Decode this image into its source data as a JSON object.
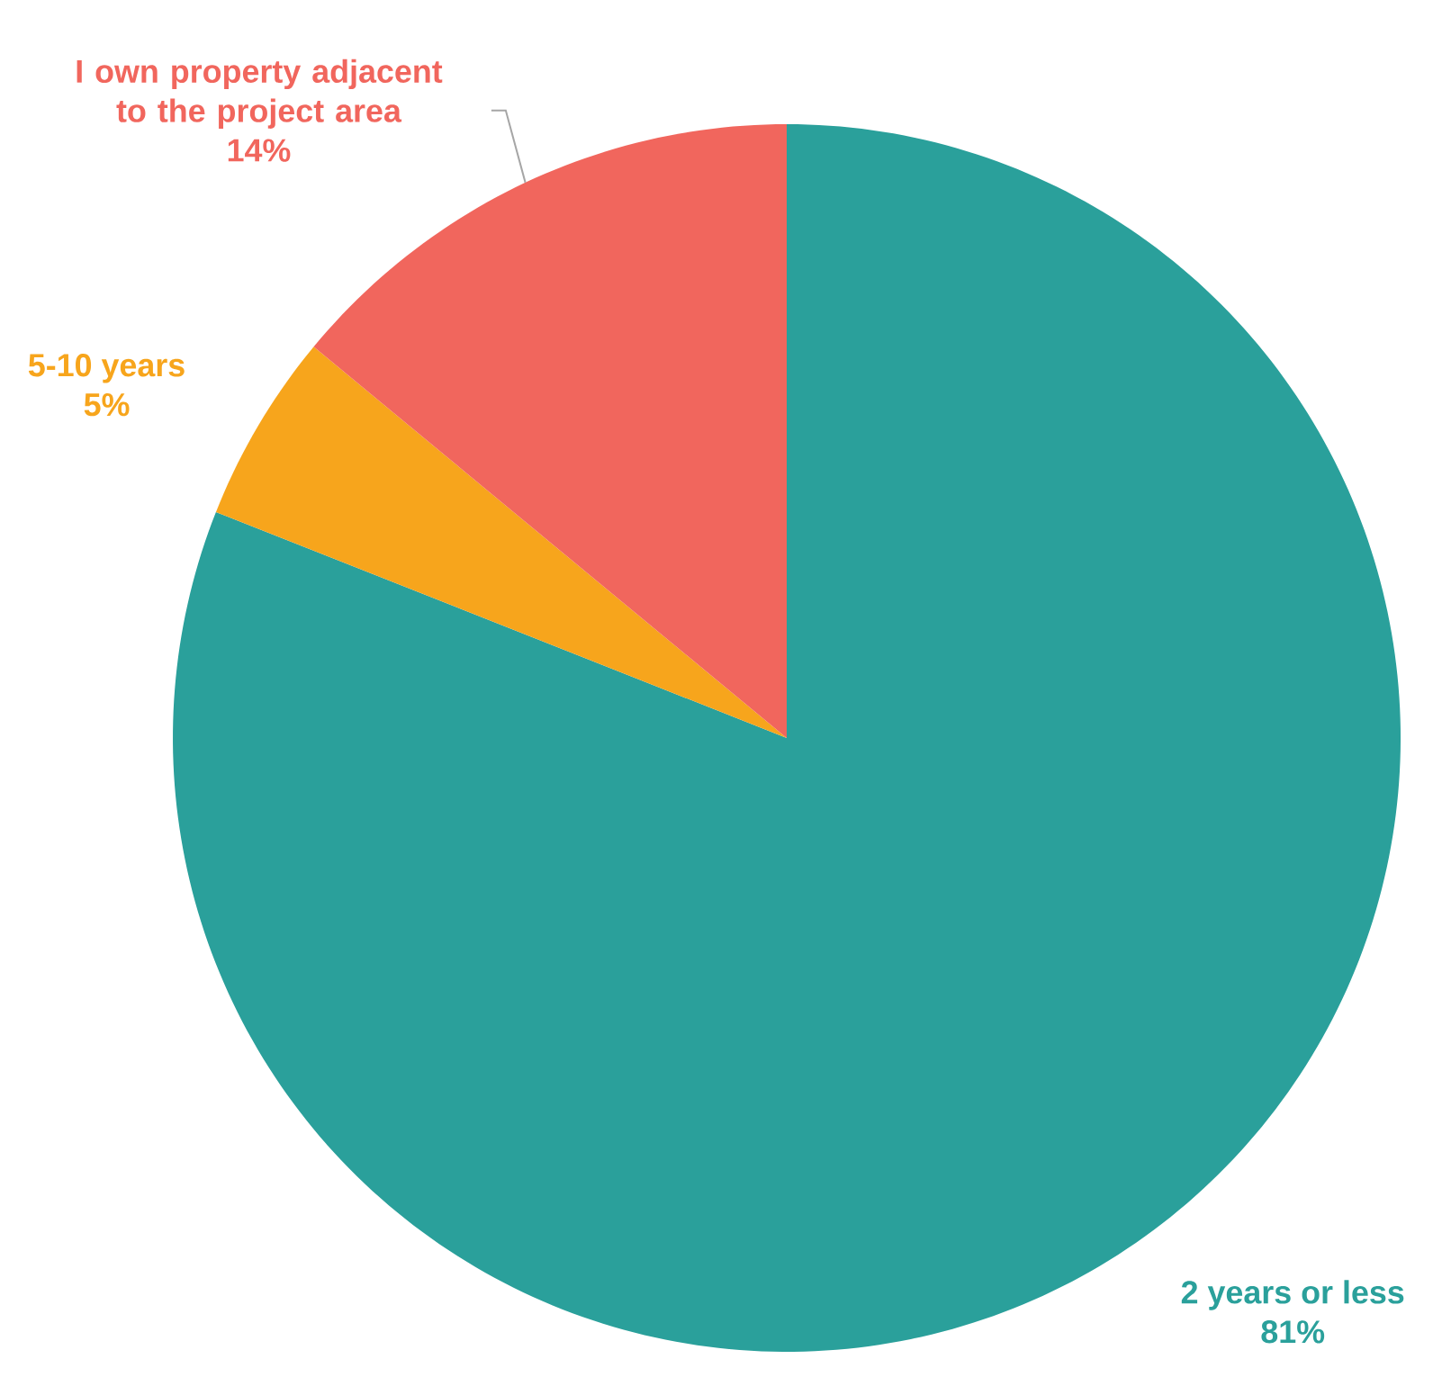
{
  "chart_data": {
    "type": "pie",
    "categories": [
      "2 years or less",
      "5-10 years",
      "I own property adjacent to the project area"
    ],
    "values": [
      81,
      5,
      14
    ],
    "colors": [
      "#2aa09b",
      "#f7a51c",
      "#f1665d"
    ],
    "value_labels": [
      "81%",
      "5%",
      "14%"
    ]
  }
}
